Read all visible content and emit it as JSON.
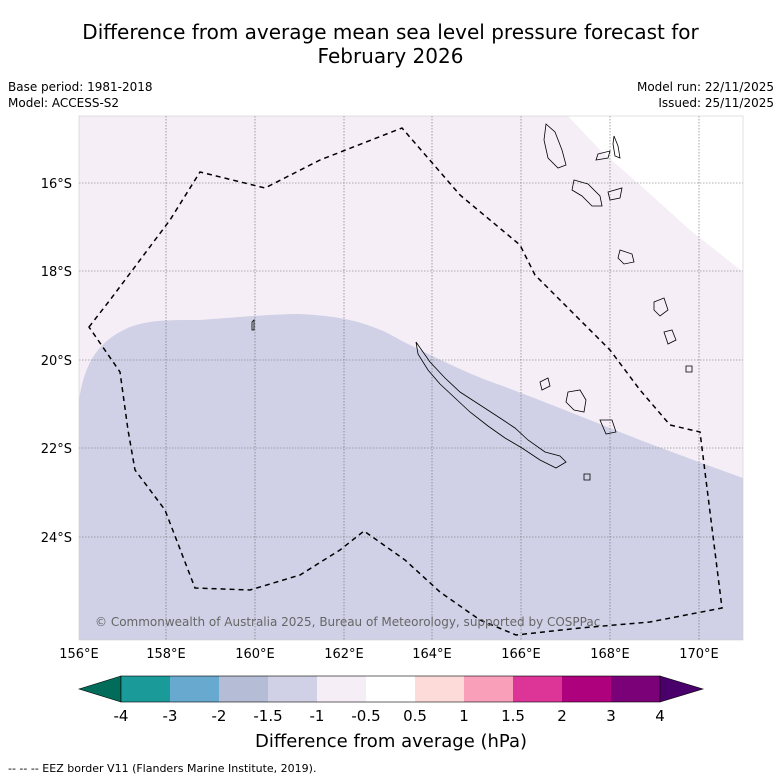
{
  "title": {
    "line1": "Difference from average mean sea level pressure forecast for",
    "line2": "February 2026"
  },
  "meta": {
    "base_period": "Base period: 1981-2018",
    "model": "Model: ACCESS-S2",
    "model_run": "Model run: 22/11/2025",
    "issued": "Issued: 25/11/2025"
  },
  "map": {
    "lon_labels": [
      "156°E",
      "158°E",
      "160°E",
      "162°E",
      "164°E",
      "166°E",
      "168°E",
      "170°E"
    ],
    "lat_labels": [
      "16°S",
      "18°S",
      "20°S",
      "22°S",
      "24°S"
    ],
    "copyright": "© Commonwealth of Australia 2025, Bureau of Meteorology, supported by COSPPac",
    "colors": {
      "band_minus_1_5_to_minus_1": "#d0d1e6",
      "band_minus_1_to_minus_0_5": "#f5eef6",
      "ocean_neutral": "#ffffff",
      "eez_line": "#000000"
    }
  },
  "legend": {
    "title": "Difference from average (hPa)",
    "tick_labels": [
      "-4",
      "-3",
      "-2",
      "-1.5",
      "-1",
      "-0.5",
      "0.5",
      "1",
      "1.5",
      "2",
      "3",
      "4"
    ],
    "colors": [
      "#1b9a9a",
      "#67a9cf",
      "#b4bcd6",
      "#d0d1e6",
      "#f5eef6",
      "#ffffff",
      "#fddbd9",
      "#f99fb9",
      "#dd3497",
      "#ae017e",
      "#7a0177"
    ],
    "low_extend_color": "#016c59",
    "high_extend_color": "#49006a"
  },
  "footer": {
    "note": "--  --  -- EEZ border V11 (Flanders Marine Institute, 2019)."
  }
}
